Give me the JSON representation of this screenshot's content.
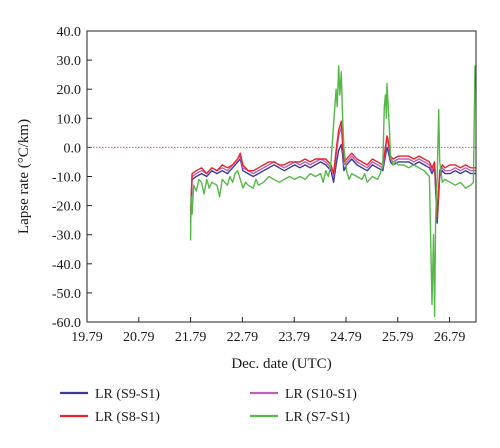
{
  "chart_data": {
    "type": "line",
    "xlabel": "Dec. date (UTC)",
    "ylabel": "Lapse rate (°C/km)",
    "xlim": [
      19.79,
      27.3
    ],
    "ylim": [
      -60,
      40
    ],
    "x_ticks": [
      "19.79",
      "20.79",
      "21.79",
      "22.79",
      "23.79",
      "24.79",
      "25.79",
      "26.79"
    ],
    "y_ticks": [
      "40.0",
      "30.0",
      "20.0",
      "10.0",
      "0.0",
      "-10.0",
      "-20.0",
      "-30.0",
      "-40.0",
      "-50.0",
      "-60.0"
    ],
    "reference_line": {
      "y": 0,
      "color": "#e06060",
      "style": "dotted"
    },
    "legend_position": "bottom",
    "series": [
      {
        "name": "LR (S9-S1)",
        "color": "#3a3a9a",
        "points": [
          [
            21.79,
            -26
          ],
          [
            21.82,
            -11
          ],
          [
            21.9,
            -10
          ],
          [
            22.0,
            -9
          ],
          [
            22.1,
            -10
          ],
          [
            22.2,
            -8
          ],
          [
            22.3,
            -9
          ],
          [
            22.4,
            -8
          ],
          [
            22.5,
            -9
          ],
          [
            22.6,
            -7
          ],
          [
            22.7,
            -5
          ],
          [
            22.75,
            -4
          ],
          [
            22.8,
            -8
          ],
          [
            22.9,
            -9
          ],
          [
            23.0,
            -10
          ],
          [
            23.1,
            -9
          ],
          [
            23.2,
            -8
          ],
          [
            23.3,
            -7
          ],
          [
            23.4,
            -6
          ],
          [
            23.5,
            -7
          ],
          [
            23.6,
            -8
          ],
          [
            23.7,
            -7
          ],
          [
            23.8,
            -6
          ],
          [
            23.9,
            -7
          ],
          [
            24.0,
            -6
          ],
          [
            24.1,
            -7
          ],
          [
            24.2,
            -6
          ],
          [
            24.3,
            -5
          ],
          [
            24.4,
            -6
          ],
          [
            24.5,
            -8
          ],
          [
            24.55,
            -12
          ],
          [
            24.6,
            -6
          ],
          [
            24.65,
            -1
          ],
          [
            24.7,
            1
          ],
          [
            24.72,
            -2
          ],
          [
            24.75,
            -8
          ],
          [
            24.8,
            -6
          ],
          [
            24.9,
            -4
          ],
          [
            25.0,
            -6
          ],
          [
            25.1,
            -7
          ],
          [
            25.2,
            -8
          ],
          [
            25.3,
            -6
          ],
          [
            25.4,
            -7
          ],
          [
            25.5,
            -8
          ],
          [
            25.55,
            -3
          ],
          [
            25.58,
            0
          ],
          [
            25.6,
            -1
          ],
          [
            25.65,
            -5
          ],
          [
            25.7,
            -6
          ],
          [
            25.8,
            -5
          ],
          [
            25.9,
            -5
          ],
          [
            26.0,
            -5
          ],
          [
            26.1,
            -6
          ],
          [
            26.2,
            -5
          ],
          [
            26.3,
            -6
          ],
          [
            26.4,
            -7
          ],
          [
            26.45,
            -9
          ],
          [
            26.5,
            -7
          ],
          [
            26.55,
            -26
          ],
          [
            26.6,
            -10
          ],
          [
            26.65,
            -8
          ],
          [
            26.7,
            -9
          ],
          [
            26.8,
            -9
          ],
          [
            26.9,
            -8
          ],
          [
            27.0,
            -9
          ],
          [
            27.1,
            -8
          ],
          [
            27.2,
            -9
          ],
          [
            27.3,
            -9
          ]
        ]
      },
      {
        "name": "LR (S10-S1)",
        "color": "#c060b8",
        "points": [
          [
            21.79,
            -24
          ],
          [
            21.82,
            -10
          ],
          [
            21.9,
            -9
          ],
          [
            22.0,
            -8
          ],
          [
            22.1,
            -9
          ],
          [
            22.2,
            -7
          ],
          [
            22.3,
            -8
          ],
          [
            22.4,
            -7
          ],
          [
            22.5,
            -8
          ],
          [
            22.6,
            -6
          ],
          [
            22.7,
            -4
          ],
          [
            22.75,
            -3
          ],
          [
            22.8,
            -7
          ],
          [
            22.9,
            -8
          ],
          [
            23.0,
            -9
          ],
          [
            23.1,
            -8
          ],
          [
            23.2,
            -7
          ],
          [
            23.3,
            -6
          ],
          [
            23.4,
            -5
          ],
          [
            23.5,
            -6
          ],
          [
            23.6,
            -7
          ],
          [
            23.7,
            -6
          ],
          [
            23.8,
            -5
          ],
          [
            23.9,
            -6
          ],
          [
            24.0,
            -5
          ],
          [
            24.1,
            -6
          ],
          [
            24.2,
            -5
          ],
          [
            24.3,
            -4
          ],
          [
            24.4,
            -5
          ],
          [
            24.5,
            -7
          ],
          [
            24.55,
            -10
          ],
          [
            24.6,
            -3
          ],
          [
            24.65,
            4
          ],
          [
            24.7,
            7
          ],
          [
            24.72,
            2
          ],
          [
            24.75,
            -6
          ],
          [
            24.8,
            -5
          ],
          [
            24.9,
            -3
          ],
          [
            25.0,
            -5
          ],
          [
            25.1,
            -6
          ],
          [
            25.2,
            -7
          ],
          [
            25.3,
            -5
          ],
          [
            25.4,
            -6
          ],
          [
            25.5,
            -7
          ],
          [
            25.55,
            -1
          ],
          [
            25.58,
            3
          ],
          [
            25.6,
            2
          ],
          [
            25.65,
            -4
          ],
          [
            25.7,
            -5
          ],
          [
            25.8,
            -4
          ],
          [
            25.9,
            -4
          ],
          [
            26.0,
            -4
          ],
          [
            26.1,
            -5
          ],
          [
            26.2,
            -4
          ],
          [
            26.3,
            -5
          ],
          [
            26.4,
            -6
          ],
          [
            26.45,
            -8
          ],
          [
            26.5,
            -6
          ],
          [
            26.55,
            -22
          ],
          [
            26.6,
            -9
          ],
          [
            26.65,
            -7
          ],
          [
            26.7,
            -8
          ],
          [
            26.8,
            -8
          ],
          [
            26.9,
            -7
          ],
          [
            27.0,
            -8
          ],
          [
            27.1,
            -7
          ],
          [
            27.2,
            -8
          ],
          [
            27.3,
            -8
          ]
        ]
      },
      {
        "name": "LR (S8-S1)",
        "color": "#e8242a",
        "points": [
          [
            21.79,
            -22
          ],
          [
            21.82,
            -9
          ],
          [
            21.9,
            -8
          ],
          [
            22.0,
            -7
          ],
          [
            22.1,
            -9
          ],
          [
            22.2,
            -7
          ],
          [
            22.3,
            -8
          ],
          [
            22.4,
            -6
          ],
          [
            22.5,
            -7
          ],
          [
            22.6,
            -6
          ],
          [
            22.7,
            -4
          ],
          [
            22.75,
            -2
          ],
          [
            22.8,
            -6
          ],
          [
            22.9,
            -8
          ],
          [
            23.0,
            -8
          ],
          [
            23.1,
            -7
          ],
          [
            23.2,
            -6
          ],
          [
            23.3,
            -5
          ],
          [
            23.4,
            -5
          ],
          [
            23.5,
            -6
          ],
          [
            23.6,
            -6
          ],
          [
            23.7,
            -5
          ],
          [
            23.8,
            -5
          ],
          [
            23.9,
            -5
          ],
          [
            24.0,
            -4
          ],
          [
            24.1,
            -5
          ],
          [
            24.2,
            -4
          ],
          [
            24.3,
            -4
          ],
          [
            24.4,
            -4
          ],
          [
            24.5,
            -6
          ],
          [
            24.55,
            -9
          ],
          [
            24.6,
            -1
          ],
          [
            24.65,
            6
          ],
          [
            24.7,
            9
          ],
          [
            24.72,
            4
          ],
          [
            24.75,
            -5
          ],
          [
            24.8,
            -4
          ],
          [
            24.9,
            -2
          ],
          [
            25.0,
            -4
          ],
          [
            25.1,
            -5
          ],
          [
            25.2,
            -6
          ],
          [
            25.3,
            -4
          ],
          [
            25.4,
            -5
          ],
          [
            25.5,
            -6
          ],
          [
            25.55,
            0
          ],
          [
            25.58,
            4
          ],
          [
            25.6,
            3
          ],
          [
            25.65,
            -3
          ],
          [
            25.7,
            -4
          ],
          [
            25.8,
            -3
          ],
          [
            25.9,
            -3
          ],
          [
            26.0,
            -3
          ],
          [
            26.1,
            -4
          ],
          [
            26.2,
            -3
          ],
          [
            26.3,
            -4
          ],
          [
            26.4,
            -5
          ],
          [
            26.45,
            -7
          ],
          [
            26.5,
            -5
          ],
          [
            26.55,
            -24
          ],
          [
            26.6,
            -8
          ],
          [
            26.65,
            -6
          ],
          [
            26.7,
            -7
          ],
          [
            26.8,
            -6
          ],
          [
            26.9,
            -6
          ],
          [
            27.0,
            -7
          ],
          [
            27.1,
            -6
          ],
          [
            27.2,
            -7
          ],
          [
            27.3,
            -7
          ]
        ]
      },
      {
        "name": "LR (S7-S1)",
        "color": "#55b848",
        "points": [
          [
            21.79,
            -32
          ],
          [
            21.8,
            -17
          ],
          [
            21.82,
            -23
          ],
          [
            21.85,
            -13
          ],
          [
            21.9,
            -15
          ],
          [
            21.95,
            -11
          ],
          [
            22.0,
            -12
          ],
          [
            22.05,
            -16
          ],
          [
            22.1,
            -11
          ],
          [
            22.15,
            -14
          ],
          [
            22.2,
            -12
          ],
          [
            22.3,
            -13
          ],
          [
            22.35,
            -17
          ],
          [
            22.4,
            -11
          ],
          [
            22.5,
            -13
          ],
          [
            22.55,
            -10
          ],
          [
            22.6,
            -12
          ],
          [
            22.65,
            -9
          ],
          [
            22.7,
            -8
          ],
          [
            22.75,
            -11
          ],
          [
            22.8,
            -14
          ],
          [
            22.85,
            -12
          ],
          [
            22.9,
            -13
          ],
          [
            23.0,
            -14
          ],
          [
            23.05,
            -11
          ],
          [
            23.1,
            -13
          ],
          [
            23.2,
            -12
          ],
          [
            23.3,
            -10
          ],
          [
            23.4,
            -11
          ],
          [
            23.5,
            -12
          ],
          [
            23.6,
            -11
          ],
          [
            23.7,
            -10
          ],
          [
            23.8,
            -11
          ],
          [
            23.9,
            -10
          ],
          [
            24.0,
            -11
          ],
          [
            24.1,
            -9
          ],
          [
            24.2,
            -10
          ],
          [
            24.3,
            -9
          ],
          [
            24.35,
            -12
          ],
          [
            24.4,
            -8
          ],
          [
            24.45,
            -10
          ],
          [
            24.5,
            -5
          ],
          [
            24.55,
            8
          ],
          [
            24.6,
            20
          ],
          [
            24.62,
            14
          ],
          [
            24.65,
            28
          ],
          [
            24.67,
            18
          ],
          [
            24.7,
            26
          ],
          [
            24.72,
            12
          ],
          [
            24.75,
            0
          ],
          [
            24.8,
            -8
          ],
          [
            24.85,
            -11
          ],
          [
            24.9,
            -9
          ],
          [
            25.0,
            -10
          ],
          [
            25.1,
            -11
          ],
          [
            25.15,
            -9
          ],
          [
            25.2,
            -12
          ],
          [
            25.3,
            -10
          ],
          [
            25.4,
            -11
          ],
          [
            25.45,
            -9
          ],
          [
            25.5,
            -6
          ],
          [
            25.53,
            14
          ],
          [
            25.55,
            18
          ],
          [
            25.57,
            10
          ],
          [
            25.58,
            22
          ],
          [
            25.6,
            16
          ],
          [
            25.63,
            6
          ],
          [
            25.65,
            -3
          ],
          [
            25.7,
            -6
          ],
          [
            25.75,
            -5
          ],
          [
            25.8,
            -6
          ],
          [
            25.9,
            -6
          ],
          [
            26.0,
            -7
          ],
          [
            26.1,
            -6
          ],
          [
            26.2,
            -7
          ],
          [
            26.3,
            -8
          ],
          [
            26.35,
            -9
          ],
          [
            26.4,
            -10
          ],
          [
            26.45,
            -54
          ],
          [
            26.48,
            -30
          ],
          [
            26.5,
            -58
          ],
          [
            26.52,
            -25
          ],
          [
            26.55,
            -10
          ],
          [
            26.58,
            13
          ],
          [
            26.6,
            -5
          ],
          [
            26.65,
            -12
          ],
          [
            26.7,
            -11
          ],
          [
            26.8,
            -12
          ],
          [
            26.9,
            -13
          ],
          [
            27.0,
            -12
          ],
          [
            27.1,
            -14
          ],
          [
            27.2,
            -13
          ],
          [
            27.25,
            -12
          ],
          [
            27.28,
            28
          ],
          [
            27.3,
            28
          ]
        ]
      }
    ]
  }
}
